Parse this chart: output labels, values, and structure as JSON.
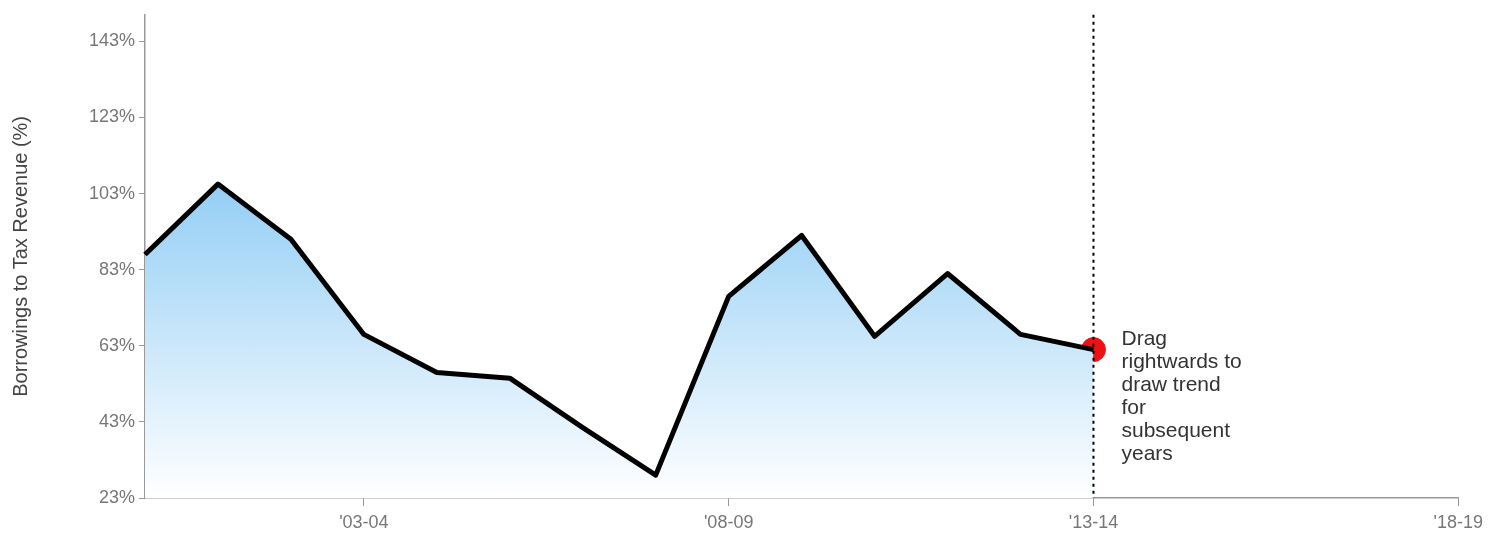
{
  "chart_data": {
    "type": "area",
    "ylabel": "Borrowings to Tax Revenue (%)",
    "categories": [
      null,
      null,
      null,
      "'03-04",
      null,
      null,
      null,
      null,
      "'08-09",
      null,
      null,
      null,
      null,
      "'13-14",
      null,
      null,
      null,
      null,
      "'18-19"
    ],
    "series": [
      {
        "color": "#5ab4f0",
        "values": [
          87,
          105.5,
          91,
          66,
          56,
          54.5,
          41.5,
          29,
          76,
          92,
          65.5,
          82,
          66,
          62,
          null,
          null,
          null,
          null,
          null
        ]
      },
      {
        "type": "scatter",
        "color": "#ee1111",
        "x": [
          "'13-14"
        ],
        "values": [
          62
        ]
      }
    ],
    "ylim": [
      23,
      150
    ],
    "yticks": [
      {
        "value": 23,
        "label": "23%"
      },
      {
        "value": 43,
        "label": "43%"
      },
      {
        "value": 63,
        "label": "63%"
      },
      {
        "value": 83,
        "label": "83%"
      },
      {
        "value": 103,
        "label": "103%"
      },
      {
        "value": 123,
        "label": "123%"
      },
      {
        "value": 143,
        "label": "143%"
      }
    ],
    "grid": false,
    "legend": false,
    "ref_lines": [
      {
        "axis": "x",
        "value": "'13-14",
        "line_style": "dotted",
        "color": "#000000"
      }
    ],
    "annotations": [
      {
        "text": "Drag rightwards to draw trend for subsequent years",
        "x": "'13-14",
        "y": 62
      }
    ]
  }
}
